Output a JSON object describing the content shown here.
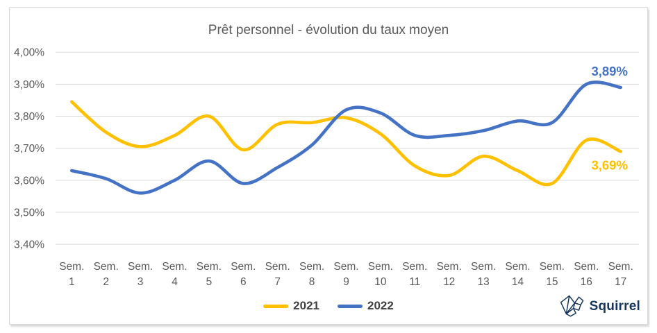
{
  "chart_data": {
    "type": "line",
    "title": "Prêt personnel - évolution du taux moyen",
    "x_tick_line1": "Sem.",
    "categories": [
      "1",
      "2",
      "3",
      "4",
      "5",
      "6",
      "7",
      "8",
      "9",
      "10",
      "11",
      "12",
      "13",
      "14",
      "15",
      "16",
      "17"
    ],
    "series": [
      {
        "name": "2021",
        "color": "#FFC000",
        "values": [
          3.845,
          3.75,
          3.705,
          3.74,
          3.8,
          3.695,
          3.775,
          3.78,
          3.795,
          3.745,
          3.645,
          3.615,
          3.675,
          3.63,
          3.59,
          3.725,
          3.69
        ],
        "end_label": "3,69%",
        "end_label_position": "below"
      },
      {
        "name": "2022",
        "color": "#4472C4",
        "values": [
          3.63,
          3.605,
          3.56,
          3.6,
          3.66,
          3.59,
          3.64,
          3.71,
          3.82,
          3.81,
          3.74,
          3.74,
          3.755,
          3.785,
          3.78,
          3.9,
          3.89
        ],
        "end_label": "3,89%",
        "end_label_position": "above"
      }
    ],
    "ylim": [
      3.4,
      4.0
    ],
    "ytick_step": 0.1,
    "ytick_labels": [
      "4,00%",
      "3,90%",
      "3,80%",
      "3,70%",
      "3,60%",
      "3,50%",
      "3,40%"
    ],
    "grid": true,
    "grid_color": "#d9d9d9",
    "axis_text_color": "#595959",
    "title_color": "#595959",
    "legend_text_color": "#404040",
    "legend_position": "bottom-center"
  },
  "branding": {
    "logo_text": "Squirrel",
    "logo_color": "#16345C"
  }
}
